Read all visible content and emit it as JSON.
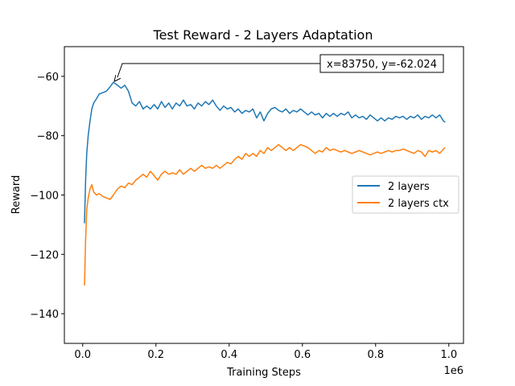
{
  "chart_data": {
    "type": "line",
    "title": "Test Reward - 2 Layers Adaptation",
    "xlabel": "Training Steps",
    "ylabel": "Reward",
    "x_offset_text": "1e6",
    "xlim": [
      -50000,
      1040000
    ],
    "ylim": [
      -150,
      -50
    ],
    "x_ticks": [
      0,
      200000,
      400000,
      600000,
      800000,
      1000000
    ],
    "x_tick_labels": [
      "0.0",
      "0.2",
      "0.4",
      "0.6",
      "0.8",
      "1.0"
    ],
    "y_ticks": [
      -140,
      -120,
      -100,
      -80,
      -60
    ],
    "y_tick_labels": [
      "−140",
      "−120",
      "−100",
      "−80",
      "−60"
    ],
    "grid": false,
    "legend_position": "right",
    "annotation": {
      "text": "x=83750, y=-62.024",
      "x": 83750,
      "y": -62.024
    },
    "series": [
      {
        "name": "2 layers",
        "color": "#1f77b4",
        "points": [
          [
            5000,
            -109.5
          ],
          [
            8000,
            -95
          ],
          [
            11000,
            -86
          ],
          [
            15000,
            -80
          ],
          [
            20000,
            -75
          ],
          [
            25000,
            -71
          ],
          [
            30000,
            -69
          ],
          [
            38000,
            -67.5
          ],
          [
            45000,
            -66
          ],
          [
            55000,
            -65.5
          ],
          [
            65000,
            -65
          ],
          [
            75000,
            -63.5
          ],
          [
            83750,
            -62.0
          ],
          [
            95000,
            -63
          ],
          [
            105000,
            -64
          ],
          [
            115000,
            -63
          ],
          [
            125000,
            -65
          ],
          [
            135000,
            -69
          ],
          [
            145000,
            -70
          ],
          [
            155000,
            -68.5
          ],
          [
            165000,
            -71
          ],
          [
            175000,
            -70
          ],
          [
            185000,
            -71
          ],
          [
            195000,
            -69.5
          ],
          [
            205000,
            -71
          ],
          [
            215000,
            -68.5
          ],
          [
            225000,
            -70.5
          ],
          [
            235000,
            -69
          ],
          [
            245000,
            -71
          ],
          [
            255000,
            -69
          ],
          [
            265000,
            -70
          ],
          [
            275000,
            -68
          ],
          [
            285000,
            -70
          ],
          [
            295000,
            -69.5
          ],
          [
            305000,
            -71
          ],
          [
            315000,
            -69
          ],
          [
            325000,
            -70
          ],
          [
            335000,
            -68.5
          ],
          [
            345000,
            -69.5
          ],
          [
            355000,
            -68
          ],
          [
            365000,
            -70
          ],
          [
            375000,
            -71.5
          ],
          [
            385000,
            -70
          ],
          [
            395000,
            -71
          ],
          [
            405000,
            -70.5
          ],
          [
            415000,
            -72
          ],
          [
            425000,
            -71
          ],
          [
            435000,
            -72.5
          ],
          [
            445000,
            -71.5
          ],
          [
            455000,
            -72
          ],
          [
            465000,
            -71
          ],
          [
            475000,
            -74
          ],
          [
            485000,
            -72
          ],
          [
            495000,
            -75
          ],
          [
            505000,
            -72.5
          ],
          [
            515000,
            -71
          ],
          [
            525000,
            -70.5
          ],
          [
            535000,
            -71.5
          ],
          [
            545000,
            -72
          ],
          [
            555000,
            -71
          ],
          [
            565000,
            -72.5
          ],
          [
            575000,
            -71.5
          ],
          [
            585000,
            -72
          ],
          [
            595000,
            -71
          ],
          [
            605000,
            -72
          ],
          [
            615000,
            -73
          ],
          [
            625000,
            -72
          ],
          [
            635000,
            -73
          ],
          [
            645000,
            -72.5
          ],
          [
            655000,
            -74
          ],
          [
            665000,
            -72.5
          ],
          [
            675000,
            -73.5
          ],
          [
            685000,
            -72.5
          ],
          [
            695000,
            -73.5
          ],
          [
            705000,
            -72.5
          ],
          [
            715000,
            -73
          ],
          [
            725000,
            -72
          ],
          [
            735000,
            -74
          ],
          [
            745000,
            -73
          ],
          [
            755000,
            -74
          ],
          [
            765000,
            -73.5
          ],
          [
            775000,
            -74.5
          ],
          [
            785000,
            -73
          ],
          [
            795000,
            -74
          ],
          [
            805000,
            -75
          ],
          [
            815000,
            -74
          ],
          [
            825000,
            -75
          ],
          [
            835000,
            -74
          ],
          [
            845000,
            -74.5
          ],
          [
            855000,
            -73.5
          ],
          [
            865000,
            -74
          ],
          [
            875000,
            -73.5
          ],
          [
            885000,
            -74.5
          ],
          [
            895000,
            -73.5
          ],
          [
            905000,
            -74
          ],
          [
            915000,
            -73
          ],
          [
            925000,
            -74.5
          ],
          [
            935000,
            -73.5
          ],
          [
            945000,
            -74
          ],
          [
            955000,
            -73
          ],
          [
            965000,
            -74
          ],
          [
            975000,
            -73
          ],
          [
            985000,
            -75
          ],
          [
            990000,
            -75.5
          ]
        ]
      },
      {
        "name": "2 layers ctx",
        "color": "#ff7f0e",
        "points": [
          [
            5000,
            -130.5
          ],
          [
            8000,
            -115
          ],
          [
            11000,
            -105
          ],
          [
            15000,
            -101
          ],
          [
            20000,
            -98
          ],
          [
            25000,
            -96.5
          ],
          [
            30000,
            -99
          ],
          [
            38000,
            -100
          ],
          [
            45000,
            -99.5
          ],
          [
            55000,
            -100.5
          ],
          [
            65000,
            -101
          ],
          [
            75000,
            -101.5
          ],
          [
            83750,
            -100
          ],
          [
            95000,
            -98
          ],
          [
            105000,
            -97
          ],
          [
            115000,
            -97.5
          ],
          [
            125000,
            -96
          ],
          [
            135000,
            -96.5
          ],
          [
            145000,
            -95
          ],
          [
            155000,
            -94
          ],
          [
            165000,
            -93
          ],
          [
            175000,
            -94
          ],
          [
            185000,
            -92
          ],
          [
            195000,
            -93.5
          ],
          [
            205000,
            -95
          ],
          [
            215000,
            -93
          ],
          [
            225000,
            -92
          ],
          [
            235000,
            -93
          ],
          [
            245000,
            -92.5
          ],
          [
            255000,
            -93
          ],
          [
            265000,
            -91.5
          ],
          [
            275000,
            -93
          ],
          [
            285000,
            -92
          ],
          [
            295000,
            -91
          ],
          [
            305000,
            -92
          ],
          [
            315000,
            -91
          ],
          [
            325000,
            -90
          ],
          [
            335000,
            -91
          ],
          [
            345000,
            -90.5
          ],
          [
            355000,
            -91
          ],
          [
            365000,
            -90
          ],
          [
            375000,
            -91
          ],
          [
            385000,
            -90
          ],
          [
            395000,
            -89
          ],
          [
            405000,
            -89.5
          ],
          [
            415000,
            -88
          ],
          [
            425000,
            -87
          ],
          [
            435000,
            -88
          ],
          [
            445000,
            -86
          ],
          [
            455000,
            -87
          ],
          [
            465000,
            -86
          ],
          [
            475000,
            -87
          ],
          [
            485000,
            -85
          ],
          [
            495000,
            -86
          ],
          [
            505000,
            -84
          ],
          [
            515000,
            -85
          ],
          [
            525000,
            -84
          ],
          [
            535000,
            -83
          ],
          [
            545000,
            -84
          ],
          [
            555000,
            -85
          ],
          [
            565000,
            -84
          ],
          [
            575000,
            -85
          ],
          [
            585000,
            -84
          ],
          [
            595000,
            -83
          ],
          [
            605000,
            -83.5
          ],
          [
            615000,
            -84
          ],
          [
            625000,
            -85
          ],
          [
            635000,
            -86
          ],
          [
            645000,
            -85
          ],
          [
            655000,
            -85.5
          ],
          [
            665000,
            -84
          ],
          [
            675000,
            -85
          ],
          [
            685000,
            -84.5
          ],
          [
            695000,
            -85
          ],
          [
            705000,
            -85.5
          ],
          [
            715000,
            -85
          ],
          [
            725000,
            -85.5
          ],
          [
            735000,
            -86
          ],
          [
            745000,
            -85.5
          ],
          [
            755000,
            -85
          ],
          [
            765000,
            -85.5
          ],
          [
            775000,
            -86
          ],
          [
            785000,
            -86.5
          ],
          [
            795000,
            -86
          ],
          [
            805000,
            -85.5
          ],
          [
            815000,
            -86
          ],
          [
            825000,
            -85.5
          ],
          [
            835000,
            -85
          ],
          [
            845000,
            -85.5
          ],
          [
            855000,
            -85
          ],
          [
            865000,
            -85
          ],
          [
            875000,
            -84.5
          ],
          [
            885000,
            -85
          ],
          [
            895000,
            -85.5
          ],
          [
            905000,
            -86
          ],
          [
            915000,
            -85
          ],
          [
            925000,
            -85.5
          ],
          [
            935000,
            -87
          ],
          [
            945000,
            -85
          ],
          [
            955000,
            -85.5
          ],
          [
            965000,
            -85
          ],
          [
            975000,
            -86
          ],
          [
            985000,
            -84.5
          ],
          [
            990000,
            -84
          ]
        ]
      }
    ]
  }
}
